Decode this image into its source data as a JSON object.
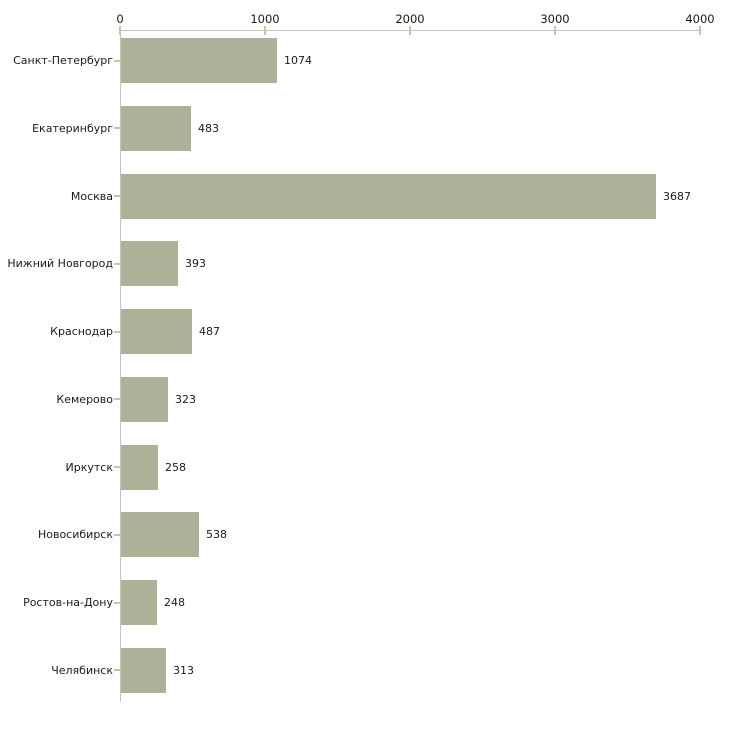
{
  "chart_data": {
    "type": "bar",
    "orientation": "horizontal",
    "title": "",
    "xlabel": "",
    "ylabel": "",
    "categories": [
      "Санкт-Петербург",
      "Екатеринбург",
      "Москва",
      "Нижний Новгород",
      "Краснодар",
      "Кемерово",
      "Иркутск",
      "Новосибирск",
      "Ростов-на-Дону",
      "Челябинск"
    ],
    "values": [
      1074,
      483,
      3687,
      393,
      487,
      323,
      258,
      538,
      248,
      313
    ],
    "value_labels": [
      "1074",
      "483",
      "3687",
      "393",
      "487",
      "323",
      "258",
      "538",
      "248",
      "313"
    ],
    "x_axis": {
      "position": "top",
      "range": [
        0,
        4000
      ],
      "ticks": [
        0,
        1000,
        2000,
        3000,
        4000
      ],
      "tick_labels": [
        "0",
        "1000",
        "2000",
        "3000",
        "4000"
      ]
    },
    "grid": false,
    "legend": "none",
    "colors": {
      "bar": "#acb297",
      "axis_line": "#c3c3c3",
      "tick": "#c6c6a2",
      "text": "#1a1a1a",
      "background": "#ffffff"
    }
  }
}
